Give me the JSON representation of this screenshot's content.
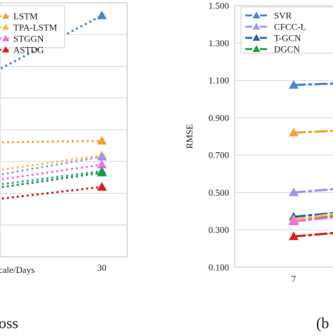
{
  "chart_data": [
    {
      "type": "line",
      "panel": "left",
      "caption": "oss",
      "xlabel": "cale/Days",
      "x_ticks": [
        "30"
      ],
      "legend": {
        "placement": "top-left"
      },
      "series": [
        {
          "name": "",
          "color": "#4a86c8",
          "marker": "triangle",
          "points": [
            {
              "x": 0.0,
              "y": 0.78
            },
            {
              "x": 1.0,
              "y": 0.96
            }
          ]
        },
        {
          "name": "LSTM",
          "color": "#f5a13c",
          "marker": "triangle",
          "points": [
            {
              "x": 0.0,
              "y": 0.56
            },
            {
              "x": 1.0,
              "y": 0.565
            }
          ]
        },
        {
          "name": "TPA-LSTM",
          "color": "#f7c23f",
          "marker": "triangle",
          "points": [
            {
              "x": 0.0,
              "y": 0.47
            },
            {
              "x": 1.0,
              "y": 0.52
            }
          ]
        },
        {
          "name": "STGGN",
          "color": "#f06fe0",
          "marker": "triangle",
          "points": [
            {
              "x": 0.0,
              "y": 0.44
            },
            {
              "x": 1.0,
              "y": 0.49
            }
          ]
        },
        {
          "name": "ASTDG",
          "color": "#d62020",
          "marker": "triangle",
          "points": [
            {
              "x": 0.0,
              "y": 0.38
            },
            {
              "x": 1.0,
              "y": 0.42
            }
          ]
        },
        {
          "name": "",
          "color": "#9b97ee",
          "marker": "triangle",
          "points": [
            {
              "x": 0.0,
              "y": 0.455
            },
            {
              "x": 1.0,
              "y": 0.515
            }
          ]
        },
        {
          "name": "",
          "color": "#33b39b",
          "marker": "triangle",
          "points": [
            {
              "x": 0.0,
              "y": 0.425
            },
            {
              "x": 1.0,
              "y": 0.47
            }
          ]
        },
        {
          "name": "",
          "color": "#1f9a46",
          "marker": "triangle",
          "points": [
            {
              "x": 0.0,
              "y": 0.415
            },
            {
              "x": 1.0,
              "y": 0.465
            }
          ]
        }
      ]
    },
    {
      "type": "line",
      "panel": "right",
      "caption": "(b",
      "ylabel": "RMSE",
      "ylim": [
        0.1,
        1.5
      ],
      "yticks": [
        "0.100",
        "0.300",
        "0.500",
        "0.700",
        "0.900",
        "1.100",
        "1.300",
        "1.500"
      ],
      "x_ticks": [
        "7"
      ],
      "legend": {
        "placement": "top-left"
      },
      "series": [
        {
          "name": "SVR",
          "color": "#4a86c8",
          "marker": "triangle",
          "points": [
            {
              "x": 7,
              "y": 1.075
            },
            {
              "x": 10,
              "y": 1.095
            }
          ]
        },
        {
          "name": "CFCC-L",
          "color": "#9b97ee",
          "marker": "triangle",
          "points": [
            {
              "x": 7,
              "y": 0.5
            },
            {
              "x": 10,
              "y": 0.545
            }
          ]
        },
        {
          "name": "T-GCN",
          "color": "#2d64a8",
          "marker": "triangle",
          "points": [
            {
              "x": 7,
              "y": 0.37
            },
            {
              "x": 10,
              "y": 0.42
            }
          ]
        },
        {
          "name": "DGCN",
          "color": "#1f9a46",
          "marker": "triangle",
          "points": [
            {
              "x": 7,
              "y": 0.35
            },
            {
              "x": 10,
              "y": 0.41
            }
          ]
        },
        {
          "name": "",
          "color": "#f5a13c",
          "marker": "triangle",
          "points": [
            {
              "x": 7,
              "y": 0.82
            },
            {
              "x": 10,
              "y": 0.845
            }
          ]
        },
        {
          "name": "",
          "color": "#f7c23f",
          "marker": "triangle",
          "points": [
            {
              "x": 7,
              "y": 0.355
            },
            {
              "x": 10,
              "y": 0.43
            }
          ]
        },
        {
          "name": "",
          "color": "#f06fe0",
          "marker": "triangle",
          "points": [
            {
              "x": 7,
              "y": 0.345
            },
            {
              "x": 10,
              "y": 0.4
            }
          ]
        },
        {
          "name": "",
          "color": "#d62020",
          "marker": "triangle",
          "points": [
            {
              "x": 7,
              "y": 0.265
            },
            {
              "x": 10,
              "y": 0.31
            }
          ]
        }
      ]
    }
  ]
}
